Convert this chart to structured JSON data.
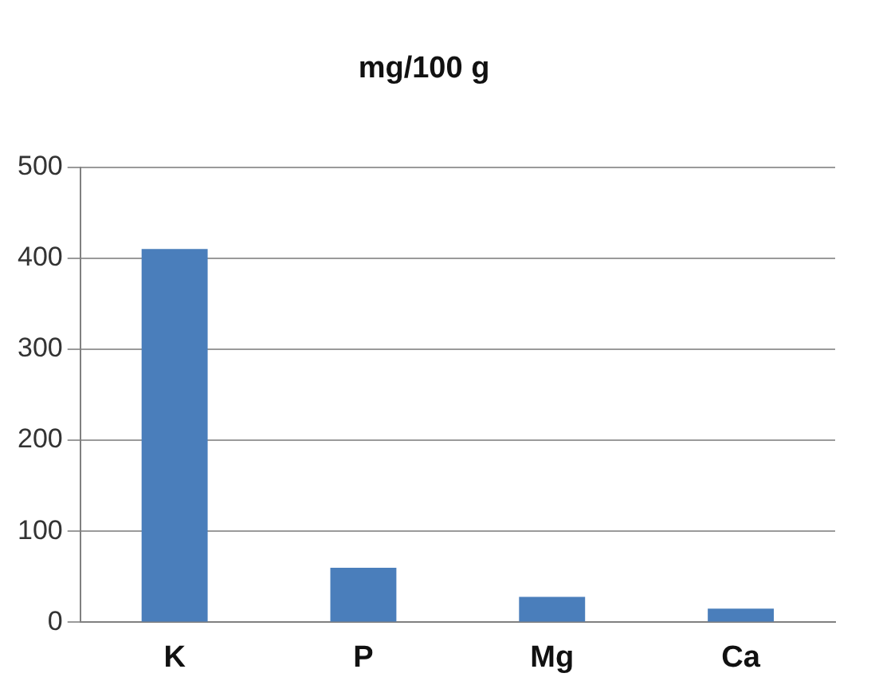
{
  "chart_data": {
    "type": "bar",
    "title": "mg/100 g",
    "categories": [
      "K",
      "P",
      "Mg",
      "Ca"
    ],
    "values": [
      410,
      60,
      28,
      15
    ],
    "color": "#4a7ebb",
    "ylim": [
      0,
      500
    ],
    "yticks": [
      0,
      100,
      200,
      300,
      400,
      500
    ],
    "grid": "y",
    "legend": false
  }
}
